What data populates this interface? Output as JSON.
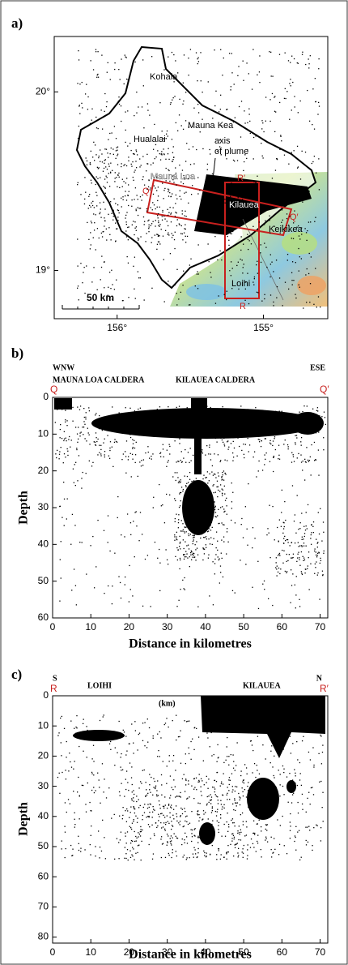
{
  "panels": [
    {
      "label": "a)",
      "xlim": [
        156.43,
        154.56
      ],
      "ylim": [
        18.73,
        20.31
      ],
      "xticks": [
        {
          "value": 156,
          "label": "156°"
        },
        {
          "value": 155,
          "label": "155°"
        }
      ],
      "yticks": [
        {
          "value": 20,
          "label": "20°"
        },
        {
          "value": 19,
          "label": "19°"
        }
      ],
      "place_labels": [
        "Kohala",
        "Mauna Kea",
        "Hualalai",
        "axis",
        "of plume",
        "Mauna Loa",
        "Kilauea",
        "Keikikea",
        "Loihi"
      ],
      "section_labels": [
        "Q",
        "Q′",
        "R′",
        "R"
      ],
      "scale_bar": "50 km"
    },
    {
      "label": "b)",
      "left_direction": "WNW",
      "right_direction": "ESE",
      "features": [
        "MAUNA LOA CALDERA",
        "KILAUEA CALDERA"
      ],
      "section_start": "Q",
      "section_end": "Q′",
      "xlabel": "Distance in kilometres",
      "ylabel": "Depth",
      "xlim": [
        0,
        72
      ],
      "ylim": [
        0,
        60
      ],
      "xticks": [
        0,
        10,
        20,
        30,
        40,
        50,
        60,
        70
      ],
      "yticks": [
        0,
        10,
        20,
        30,
        40,
        50,
        60
      ]
    },
    {
      "label": "c)",
      "left_direction": "S",
      "right_direction": "N",
      "features": [
        "LOIHI",
        "KILAUEA"
      ],
      "unit_note": "(km)",
      "section_start": "R",
      "section_end": "R′",
      "xlabel": "Distance in kilometres",
      "ylabel": "Depth",
      "xlim": [
        0,
        72
      ],
      "ylim": [
        0,
        82
      ],
      "xticks": [
        0,
        10,
        20,
        30,
        40,
        50,
        60,
        70
      ],
      "yticks": [
        0,
        10,
        20,
        30,
        40,
        50,
        60,
        70,
        80
      ]
    }
  ]
}
